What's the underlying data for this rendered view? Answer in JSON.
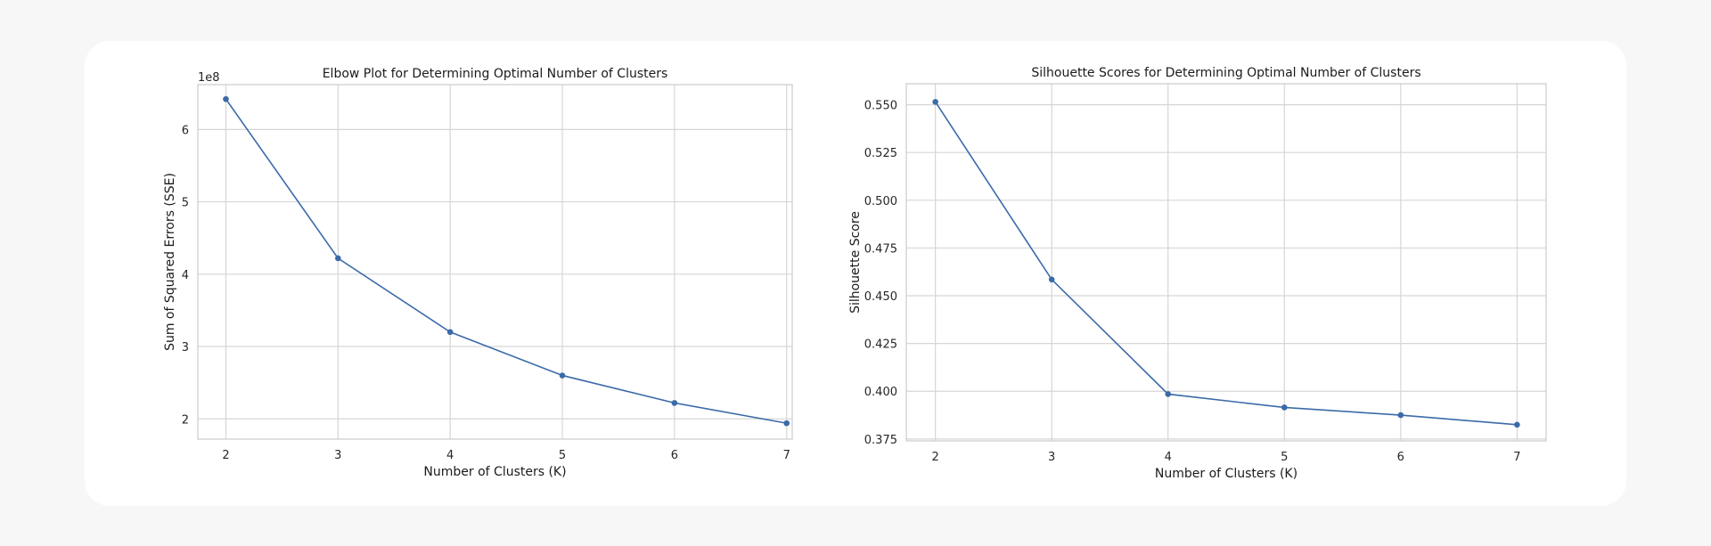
{
  "chart_data": [
    {
      "type": "line",
      "title": "Elbow Plot for Determining Optimal Number of Clusters",
      "xlabel": "Number of Clusters (K)",
      "ylabel": "Sum of Squared Errors (SSE)",
      "offset_label": "1e8",
      "x": [
        2,
        3,
        4,
        5,
        6,
        7
      ],
      "series": [
        {
          "values": [
            642000000,
            422000000,
            320000000,
            260000000,
            222000000,
            194000000
          ]
        }
      ],
      "xlim": [
        1.75,
        7.05
      ],
      "ylim": [
        172000000,
        662000000
      ],
      "xticks": [
        2,
        3,
        4,
        5,
        6,
        7
      ],
      "yticks": [
        200000000,
        300000000,
        400000000,
        500000000,
        600000000
      ],
      "ytick_labels": [
        "2",
        "3",
        "4",
        "5",
        "6"
      ],
      "grid": true,
      "color": "#3b6aa8"
    },
    {
      "type": "line",
      "title": "Silhouette Scores for Determining Optimal Number of Clusters",
      "xlabel": "Number of Clusters (K)",
      "ylabel": "Silhouette Score",
      "x": [
        2,
        3,
        4,
        5,
        6,
        7
      ],
      "series": [
        {
          "values": [
            0.5515,
            0.4585,
            0.3985,
            0.3915,
            0.3875,
            0.3825
          ]
        }
      ],
      "xlim": [
        1.75,
        7.25
      ],
      "ylim": [
        0.374,
        0.561
      ],
      "xticks": [
        2,
        3,
        4,
        5,
        6,
        7
      ],
      "yticks": [
        0.375,
        0.4,
        0.425,
        0.45,
        0.475,
        0.5,
        0.525,
        0.55
      ],
      "ytick_labels": [
        "0.375",
        "0.400",
        "0.425",
        "0.450",
        "0.475",
        "0.500",
        "0.525",
        "0.550"
      ],
      "grid": true,
      "color": "#3b6aa8"
    }
  ]
}
